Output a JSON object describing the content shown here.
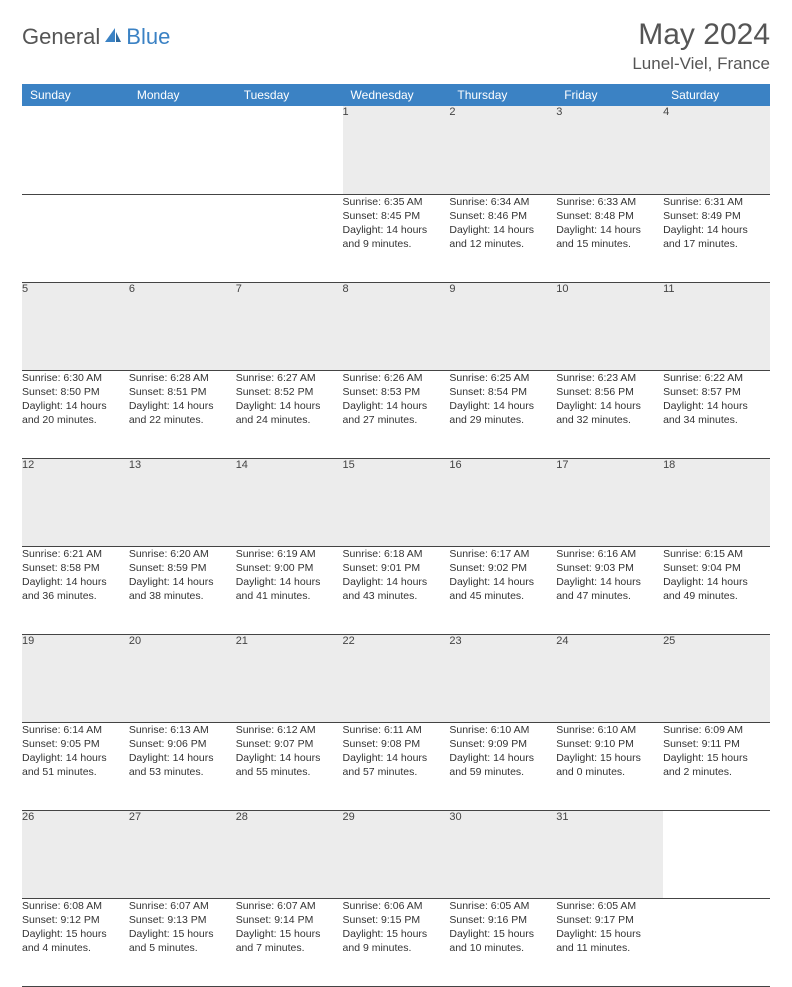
{
  "logo": {
    "part1": "General",
    "part2": "Blue"
  },
  "title": "May 2024",
  "location": "Lunel-Viel, France",
  "colors": {
    "header_bg": "#3b82c4",
    "header_text": "#ffffff",
    "daynum_bg": "#ececec",
    "grid_line": "#444444",
    "body_text": "#333333",
    "title_text": "#555555"
  },
  "weekdays": [
    "Sunday",
    "Monday",
    "Tuesday",
    "Wednesday",
    "Thursday",
    "Friday",
    "Saturday"
  ],
  "weeks": [
    [
      null,
      null,
      null,
      {
        "n": "1",
        "sr": "Sunrise: 6:35 AM",
        "ss": "Sunset: 8:45 PM",
        "dl1": "Daylight: 14 hours",
        "dl2": "and 9 minutes."
      },
      {
        "n": "2",
        "sr": "Sunrise: 6:34 AM",
        "ss": "Sunset: 8:46 PM",
        "dl1": "Daylight: 14 hours",
        "dl2": "and 12 minutes."
      },
      {
        "n": "3",
        "sr": "Sunrise: 6:33 AM",
        "ss": "Sunset: 8:48 PM",
        "dl1": "Daylight: 14 hours",
        "dl2": "and 15 minutes."
      },
      {
        "n": "4",
        "sr": "Sunrise: 6:31 AM",
        "ss": "Sunset: 8:49 PM",
        "dl1": "Daylight: 14 hours",
        "dl2": "and 17 minutes."
      }
    ],
    [
      {
        "n": "5",
        "sr": "Sunrise: 6:30 AM",
        "ss": "Sunset: 8:50 PM",
        "dl1": "Daylight: 14 hours",
        "dl2": "and 20 minutes."
      },
      {
        "n": "6",
        "sr": "Sunrise: 6:28 AM",
        "ss": "Sunset: 8:51 PM",
        "dl1": "Daylight: 14 hours",
        "dl2": "and 22 minutes."
      },
      {
        "n": "7",
        "sr": "Sunrise: 6:27 AM",
        "ss": "Sunset: 8:52 PM",
        "dl1": "Daylight: 14 hours",
        "dl2": "and 24 minutes."
      },
      {
        "n": "8",
        "sr": "Sunrise: 6:26 AM",
        "ss": "Sunset: 8:53 PM",
        "dl1": "Daylight: 14 hours",
        "dl2": "and 27 minutes."
      },
      {
        "n": "9",
        "sr": "Sunrise: 6:25 AM",
        "ss": "Sunset: 8:54 PM",
        "dl1": "Daylight: 14 hours",
        "dl2": "and 29 minutes."
      },
      {
        "n": "10",
        "sr": "Sunrise: 6:23 AM",
        "ss": "Sunset: 8:56 PM",
        "dl1": "Daylight: 14 hours",
        "dl2": "and 32 minutes."
      },
      {
        "n": "11",
        "sr": "Sunrise: 6:22 AM",
        "ss": "Sunset: 8:57 PM",
        "dl1": "Daylight: 14 hours",
        "dl2": "and 34 minutes."
      }
    ],
    [
      {
        "n": "12",
        "sr": "Sunrise: 6:21 AM",
        "ss": "Sunset: 8:58 PM",
        "dl1": "Daylight: 14 hours",
        "dl2": "and 36 minutes."
      },
      {
        "n": "13",
        "sr": "Sunrise: 6:20 AM",
        "ss": "Sunset: 8:59 PM",
        "dl1": "Daylight: 14 hours",
        "dl2": "and 38 minutes."
      },
      {
        "n": "14",
        "sr": "Sunrise: 6:19 AM",
        "ss": "Sunset: 9:00 PM",
        "dl1": "Daylight: 14 hours",
        "dl2": "and 41 minutes."
      },
      {
        "n": "15",
        "sr": "Sunrise: 6:18 AM",
        "ss": "Sunset: 9:01 PM",
        "dl1": "Daylight: 14 hours",
        "dl2": "and 43 minutes."
      },
      {
        "n": "16",
        "sr": "Sunrise: 6:17 AM",
        "ss": "Sunset: 9:02 PM",
        "dl1": "Daylight: 14 hours",
        "dl2": "and 45 minutes."
      },
      {
        "n": "17",
        "sr": "Sunrise: 6:16 AM",
        "ss": "Sunset: 9:03 PM",
        "dl1": "Daylight: 14 hours",
        "dl2": "and 47 minutes."
      },
      {
        "n": "18",
        "sr": "Sunrise: 6:15 AM",
        "ss": "Sunset: 9:04 PM",
        "dl1": "Daylight: 14 hours",
        "dl2": "and 49 minutes."
      }
    ],
    [
      {
        "n": "19",
        "sr": "Sunrise: 6:14 AM",
        "ss": "Sunset: 9:05 PM",
        "dl1": "Daylight: 14 hours",
        "dl2": "and 51 minutes."
      },
      {
        "n": "20",
        "sr": "Sunrise: 6:13 AM",
        "ss": "Sunset: 9:06 PM",
        "dl1": "Daylight: 14 hours",
        "dl2": "and 53 minutes."
      },
      {
        "n": "21",
        "sr": "Sunrise: 6:12 AM",
        "ss": "Sunset: 9:07 PM",
        "dl1": "Daylight: 14 hours",
        "dl2": "and 55 minutes."
      },
      {
        "n": "22",
        "sr": "Sunrise: 6:11 AM",
        "ss": "Sunset: 9:08 PM",
        "dl1": "Daylight: 14 hours",
        "dl2": "and 57 minutes."
      },
      {
        "n": "23",
        "sr": "Sunrise: 6:10 AM",
        "ss": "Sunset: 9:09 PM",
        "dl1": "Daylight: 14 hours",
        "dl2": "and 59 minutes."
      },
      {
        "n": "24",
        "sr": "Sunrise: 6:10 AM",
        "ss": "Sunset: 9:10 PM",
        "dl1": "Daylight: 15 hours",
        "dl2": "and 0 minutes."
      },
      {
        "n": "25",
        "sr": "Sunrise: 6:09 AM",
        "ss": "Sunset: 9:11 PM",
        "dl1": "Daylight: 15 hours",
        "dl2": "and 2 minutes."
      }
    ],
    [
      {
        "n": "26",
        "sr": "Sunrise: 6:08 AM",
        "ss": "Sunset: 9:12 PM",
        "dl1": "Daylight: 15 hours",
        "dl2": "and 4 minutes."
      },
      {
        "n": "27",
        "sr": "Sunrise: 6:07 AM",
        "ss": "Sunset: 9:13 PM",
        "dl1": "Daylight: 15 hours",
        "dl2": "and 5 minutes."
      },
      {
        "n": "28",
        "sr": "Sunrise: 6:07 AM",
        "ss": "Sunset: 9:14 PM",
        "dl1": "Daylight: 15 hours",
        "dl2": "and 7 minutes."
      },
      {
        "n": "29",
        "sr": "Sunrise: 6:06 AM",
        "ss": "Sunset: 9:15 PM",
        "dl1": "Daylight: 15 hours",
        "dl2": "and 9 minutes."
      },
      {
        "n": "30",
        "sr": "Sunrise: 6:05 AM",
        "ss": "Sunset: 9:16 PM",
        "dl1": "Daylight: 15 hours",
        "dl2": "and 10 minutes."
      },
      {
        "n": "31",
        "sr": "Sunrise: 6:05 AM",
        "ss": "Sunset: 9:17 PM",
        "dl1": "Daylight: 15 hours",
        "dl2": "and 11 minutes."
      },
      null
    ]
  ]
}
